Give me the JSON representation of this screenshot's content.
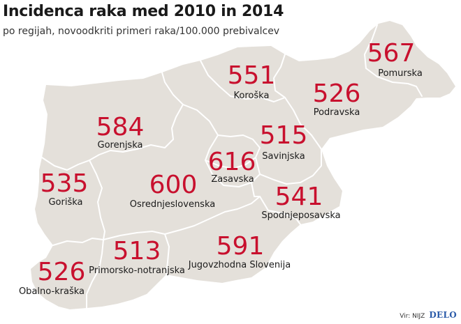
{
  "title": "Incidenca raka med 2010 in 2014",
  "subtitle": "po regijah, novoodkriti primeri raka/100.000 prebivalcev",
  "colors": {
    "land": "#e4e0da",
    "border": "#ffffff",
    "value": "#c8102e",
    "brand": "#2a5aa8"
  },
  "regions": [
    {
      "name": "Pomurska",
      "value": "567"
    },
    {
      "name": "Koroška",
      "value": "551"
    },
    {
      "name": "Podravska",
      "value": "526"
    },
    {
      "name": "Gorenjska",
      "value": "584"
    },
    {
      "name": "Savinjska",
      "value": "515"
    },
    {
      "name": "Zasavska",
      "value": "616"
    },
    {
      "name": "Goriška",
      "value": "535"
    },
    {
      "name": "Osrednjeslovenska",
      "value": "600"
    },
    {
      "name": "Spodnjeposavska",
      "value": "541"
    },
    {
      "name": "Jugovzhodna Slovenija",
      "value": "591"
    },
    {
      "name": "Primorsko-notranjska",
      "value": "513"
    },
    {
      "name": "Obalno-kraška",
      "value": "526"
    }
  ],
  "footer": {
    "source": "Vir: NIJZ",
    "brand": "DELO"
  }
}
